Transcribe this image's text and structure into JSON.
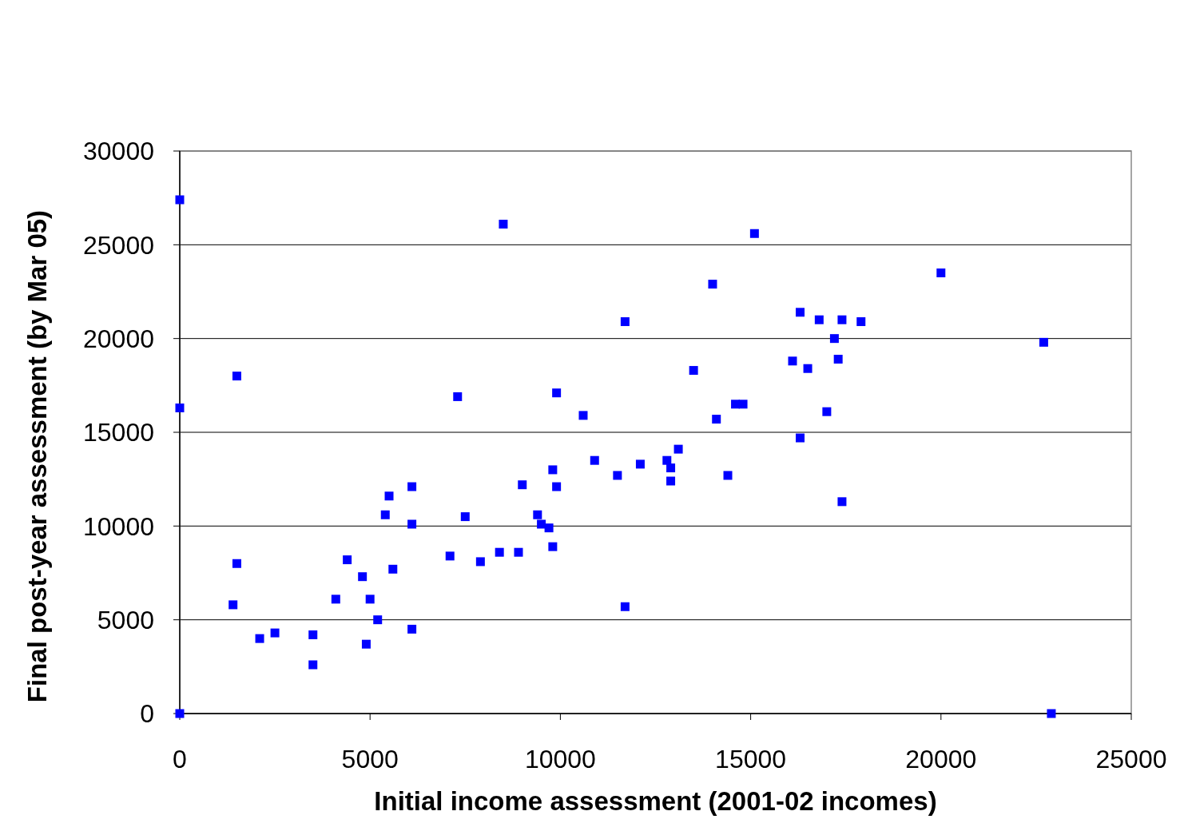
{
  "chart_data": {
    "type": "scatter",
    "xlabel": "Initial income assessment (2001-02 incomes)",
    "ylabel": "Final post-year assessment (by Mar 05)",
    "marker": "square",
    "grid": "y",
    "xlim": [
      0,
      25000
    ],
    "xticks": [
      0,
      5000,
      10000,
      15000,
      20000,
      25000
    ],
    "ylim": [
      0,
      30000
    ],
    "yticks": [
      0,
      5000,
      10000,
      15000,
      20000,
      25000,
      30000
    ],
    "series": [
      {
        "color": "#0000ff",
        "x": [
          0,
          0,
          0,
          1500,
          1500,
          1400,
          2100,
          2500,
          3500,
          3500,
          4100,
          4400,
          4800,
          5000,
          4900,
          5200,
          5400,
          5500,
          5600,
          6100,
          6100,
          6100,
          7100,
          7300,
          7500,
          7900,
          8400,
          8500,
          8900,
          9000,
          9400,
          9500,
          9700,
          9800,
          9800,
          9900,
          9900,
          10600,
          10900,
          11500,
          11700,
          11700,
          12100,
          12800,
          12900,
          12900,
          13100,
          13500,
          14000,
          14100,
          14400,
          14600,
          14800,
          15100,
          16100,
          16300,
          16300,
          16500,
          16800,
          17000,
          17200,
          17300,
          17400,
          17400,
          17900,
          20000,
          22700,
          22900
        ],
        "values": [
          27400,
          16300,
          0,
          18000,
          8000,
          5800,
          4000,
          4300,
          2600,
          4200,
          6100,
          8200,
          7300,
          6100,
          3700,
          5000,
          10600,
          11600,
          7700,
          12100,
          10100,
          4500,
          8400,
          16900,
          10500,
          8100,
          8600,
          26100,
          8600,
          12200,
          10600,
          10100,
          9900,
          8900,
          13000,
          12100,
          17100,
          15900,
          13500,
          12700,
          5700,
          20900,
          13300,
          13500,
          13100,
          12400,
          14100,
          18300,
          22900,
          15700,
          12700,
          16500,
          16500,
          25600,
          18800,
          14700,
          21400,
          18400,
          21000,
          16100,
          20000,
          18900,
          21000,
          11300,
          20900,
          23500,
          19800,
          0
        ]
      }
    ]
  }
}
